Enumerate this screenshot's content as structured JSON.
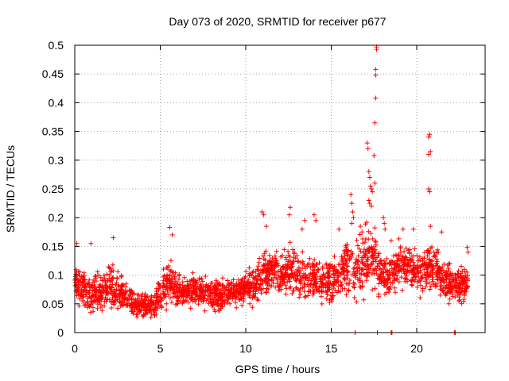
{
  "chart_data": {
    "type": "scatter",
    "title": "Day 073 of 2020, SRMTID for receiver p677",
    "xlabel": "GPS time / hours",
    "ylabel": "SRMTID / TECUs",
    "xlim": [
      0,
      24
    ],
    "ylim": [
      0,
      0.5
    ],
    "xticks": [
      0,
      5,
      10,
      15,
      20
    ],
    "xtick_labels": [
      "0",
      "5",
      "10",
      "15",
      "20"
    ],
    "yticks": [
      0,
      0.05,
      0.1,
      0.15,
      0.2,
      0.25,
      0.3,
      0.35,
      0.4,
      0.45,
      0.5
    ],
    "ytick_labels": [
      "0",
      "0.05",
      "0.1",
      "0.15",
      "0.2",
      "0.25",
      "0.3",
      "0.35",
      "0.4",
      "0.45",
      "0.5"
    ],
    "grid": true,
    "marker": "+",
    "color": "#ff0000",
    "series": [
      {
        "name": "SRMTID",
        "envelope": [
          [
            0.0,
            0.04,
            0.13
          ],
          [
            0.5,
            0.03,
            0.12
          ],
          [
            1.0,
            0.02,
            0.11
          ],
          [
            1.5,
            0.03,
            0.11
          ],
          [
            2.0,
            0.03,
            0.13
          ],
          [
            2.5,
            0.03,
            0.12
          ],
          [
            3.0,
            0.03,
            0.1
          ],
          [
            3.5,
            0.02,
            0.08
          ],
          [
            4.0,
            0.02,
            0.07
          ],
          [
            4.5,
            0.02,
            0.08
          ],
          [
            5.0,
            0.02,
            0.1
          ],
          [
            5.5,
            0.04,
            0.15
          ],
          [
            6.0,
            0.04,
            0.11
          ],
          [
            6.5,
            0.04,
            0.1
          ],
          [
            7.0,
            0.04,
            0.11
          ],
          [
            7.5,
            0.03,
            0.11
          ],
          [
            8.0,
            0.03,
            0.1
          ],
          [
            8.5,
            0.03,
            0.1
          ],
          [
            9.0,
            0.04,
            0.11
          ],
          [
            9.5,
            0.04,
            0.1
          ],
          [
            10.0,
            0.04,
            0.12
          ],
          [
            10.5,
            0.03,
            0.13
          ],
          [
            11.0,
            0.05,
            0.16
          ],
          [
            11.5,
            0.06,
            0.16
          ],
          [
            12.0,
            0.05,
            0.15
          ],
          [
            12.5,
            0.05,
            0.17
          ],
          [
            13.0,
            0.05,
            0.15
          ],
          [
            13.5,
            0.04,
            0.15
          ],
          [
            14.0,
            0.04,
            0.15
          ],
          [
            14.5,
            0.04,
            0.14
          ],
          [
            15.0,
            0.04,
            0.14
          ],
          [
            15.5,
            0.05,
            0.15
          ],
          [
            16.0,
            0.04,
            0.18
          ],
          [
            16.5,
            0.04,
            0.18
          ],
          [
            17.0,
            0.05,
            0.2
          ],
          [
            17.5,
            0.06,
            0.2
          ],
          [
            18.0,
            0.05,
            0.15
          ],
          [
            18.5,
            0.05,
            0.15
          ],
          [
            19.0,
            0.06,
            0.17
          ],
          [
            19.5,
            0.07,
            0.17
          ],
          [
            20.0,
            0.06,
            0.15
          ],
          [
            20.5,
            0.05,
            0.16
          ],
          [
            21.0,
            0.06,
            0.17
          ],
          [
            21.5,
            0.05,
            0.14
          ],
          [
            22.0,
            0.04,
            0.13
          ],
          [
            22.5,
            0.04,
            0.12
          ],
          [
            23.0,
            0.03,
            0.13
          ]
        ],
        "point_count": 2400,
        "outliers": [
          [
            0.12,
            0.155
          ],
          [
            0.95,
            0.155
          ],
          [
            2.25,
            0.165
          ],
          [
            5.55,
            0.183
          ],
          [
            5.7,
            0.17
          ],
          [
            10.95,
            0.21
          ],
          [
            11.05,
            0.205
          ],
          [
            11.2,
            0.185
          ],
          [
            12.6,
            0.218
          ],
          [
            12.55,
            0.205
          ],
          [
            13.45,
            0.195
          ],
          [
            13.3,
            0.18
          ],
          [
            14.0,
            0.205
          ],
          [
            14.1,
            0.195
          ],
          [
            15.45,
            0.18
          ],
          [
            16.15,
            0.24
          ],
          [
            16.2,
            0.225
          ],
          [
            16.25,
            0.21
          ],
          [
            16.3,
            0.2
          ],
          [
            16.2,
            0.19
          ],
          [
            16.7,
            0.185
          ],
          [
            16.8,
            0.175
          ],
          [
            17.1,
            0.33
          ],
          [
            17.15,
            0.32
          ],
          [
            17.2,
            0.28
          ],
          [
            17.25,
            0.27
          ],
          [
            17.3,
            0.255
          ],
          [
            17.35,
            0.25
          ],
          [
            17.4,
            0.245
          ],
          [
            17.2,
            0.23
          ],
          [
            17.25,
            0.225
          ],
          [
            17.35,
            0.22
          ],
          [
            17.5,
            0.308
          ],
          [
            17.55,
            0.365
          ],
          [
            17.6,
            0.408
          ],
          [
            17.6,
            0.448
          ],
          [
            17.6,
            0.458
          ],
          [
            17.65,
            0.493
          ],
          [
            17.65,
            0.497
          ],
          [
            17.55,
            0.26
          ],
          [
            18.05,
            0.2
          ],
          [
            18.1,
            0.19
          ],
          [
            18.15,
            0.18
          ],
          [
            18.5,
            0.16
          ],
          [
            19.2,
            0.18
          ],
          [
            19.8,
            0.18
          ],
          [
            20.7,
            0.34
          ],
          [
            20.75,
            0.345
          ],
          [
            20.8,
            0.315
          ],
          [
            20.7,
            0.31
          ],
          [
            20.7,
            0.25
          ],
          [
            20.75,
            0.245
          ],
          [
            20.8,
            0.185
          ],
          [
            21.45,
            0.175
          ],
          [
            22.95,
            0.148
          ],
          [
            23.0,
            0.14
          ],
          [
            16.4,
            0.0
          ],
          [
            17.7,
            0.0
          ],
          [
            18.5,
            0.0
          ],
          [
            18.55,
            0.0
          ],
          [
            22.2,
            0.0
          ],
          [
            22.25,
            0.0
          ]
        ]
      }
    ]
  }
}
